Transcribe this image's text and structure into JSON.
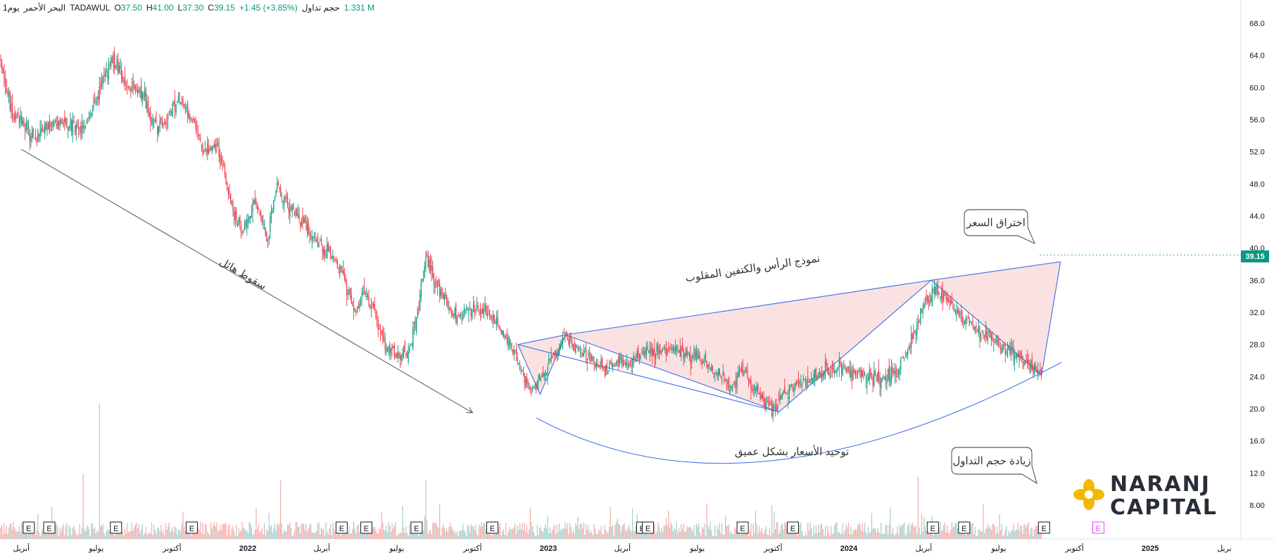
{
  "header": {
    "period": "1يوم",
    "name": "البحر الأحمر",
    "exchange": "TADAWUL",
    "open_label": "O",
    "open": "37.50",
    "high_label": "H",
    "high": "41.00",
    "low_label": "L",
    "low": "37.30",
    "close_label": "C",
    "close": "39.15",
    "change": "+1.45 (+3.85%)",
    "volume_label": "حجم تداول",
    "volume": "1.331 M"
  },
  "chart_data": {
    "type": "candlestick",
    "symbol": "TADAWUL",
    "y_axis": {
      "ticks": [
        68.0,
        64.0,
        60.0,
        56.0,
        52.0,
        48.0,
        44.0,
        40.0,
        36.0,
        32.0,
        28.0,
        24.0,
        20.0,
        16.0,
        12.0,
        8.0
      ],
      "tick_labels": [
        "68.0",
        "64.0",
        "60.0",
        "56.0",
        "52.0",
        "48.0",
        "44.0",
        "40.0",
        "36.0",
        "32.0",
        "28.0",
        "24.0",
        "20.0",
        "16.0",
        "12.0",
        "8.00"
      ],
      "ylim": [
        5.5,
        70
      ]
    },
    "x_axis": {
      "tick_labels": [
        "أبريل",
        "يوليو",
        "أكتوبر",
        "2022",
        "أبريل",
        "يوليو",
        "أكتوبر",
        "2023",
        "أبريل",
        "يوليو",
        "أكتوبر",
        "2024",
        "أبريل",
        "يوليو",
        "أكتوبر",
        "2025",
        "بريل"
      ],
      "tick_dates": [
        "2021-04-01",
        "2021-07-01",
        "2021-10-01",
        "2022-01-01",
        "2022-04-01",
        "2022-07-01",
        "2022-10-01",
        "2023-01-01",
        "2023-04-01",
        "2023-07-01",
        "2023-10-01",
        "2024-01-01",
        "2024-04-01",
        "2024-07-01",
        "2024-10-01",
        "2025-01-01",
        "2025-04-01"
      ],
      "bold_ticks": [
        "2022",
        "2023",
        "2024",
        "2025"
      ]
    },
    "price_path": [
      [
        "2021-03-01",
        66
      ],
      [
        "2021-03-20",
        57
      ],
      [
        "2021-04-15",
        54
      ],
      [
        "2021-05-20",
        56
      ],
      [
        "2021-06-15",
        54.5
      ],
      [
        "2021-07-10",
        61
      ],
      [
        "2021-07-20",
        63.5
      ],
      [
        "2021-08-10",
        60
      ],
      [
        "2021-08-25",
        59.5
      ],
      [
        "2021-09-10",
        55
      ],
      [
        "2021-09-25",
        56
      ],
      [
        "2021-10-10",
        59
      ],
      [
        "2021-10-25",
        56
      ],
      [
        "2021-11-10",
        52
      ],
      [
        "2021-11-25",
        53
      ],
      [
        "2021-12-10",
        46
      ],
      [
        "2021-12-25",
        42
      ],
      [
        "2022-01-10",
        46
      ],
      [
        "2022-01-25",
        41
      ],
      [
        "2022-02-05",
        48
      ],
      [
        "2022-02-20",
        45
      ],
      [
        "2022-03-05",
        44
      ],
      [
        "2022-03-25",
        41
      ],
      [
        "2022-04-10",
        39.5
      ],
      [
        "2022-04-25",
        37
      ],
      [
        "2022-05-10",
        32
      ],
      [
        "2022-05-20",
        34
      ],
      [
        "2022-06-01",
        33
      ],
      [
        "2022-06-15",
        28
      ],
      [
        "2022-07-01",
        26.5
      ],
      [
        "2022-07-15",
        27
      ],
      [
        "2022-07-25",
        31
      ],
      [
        "2022-08-05",
        39
      ],
      [
        "2022-08-15",
        36
      ],
      [
        "2022-08-25",
        34
      ],
      [
        "2022-09-10",
        31.5
      ],
      [
        "2022-09-25",
        32
      ],
      [
        "2022-10-10",
        32.5
      ],
      [
        "2022-10-25",
        31.5
      ],
      [
        "2022-11-10",
        29
      ],
      [
        "2022-11-25",
        26
      ],
      [
        "2022-12-10",
        21.8
      ],
      [
        "2022-12-25",
        24.5
      ],
      [
        "2023-01-10",
        27
      ],
      [
        "2023-01-20",
        29
      ],
      [
        "2023-02-10",
        27
      ],
      [
        "2023-03-10",
        25
      ],
      [
        "2023-04-10",
        26
      ],
      [
        "2023-05-10",
        27.5
      ],
      [
        "2023-06-10",
        27
      ],
      [
        "2023-07-10",
        26
      ],
      [
        "2023-08-10",
        22.5
      ],
      [
        "2023-08-25",
        25
      ],
      [
        "2023-09-10",
        22
      ],
      [
        "2023-10-01",
        20
      ],
      [
        "2023-10-20",
        22.5
      ],
      [
        "2023-11-10",
        23.5
      ],
      [
        "2023-12-10",
        25
      ],
      [
        "2024-01-10",
        24.5
      ],
      [
        "2024-02-10",
        23.5
      ],
      [
        "2024-03-01",
        25
      ],
      [
        "2024-03-15",
        28
      ],
      [
        "2024-04-01",
        33
      ],
      [
        "2024-04-15",
        35
      ],
      [
        "2024-05-01",
        33
      ],
      [
        "2024-05-20",
        31
      ],
      [
        "2024-06-10",
        29.5
      ],
      [
        "2024-07-01",
        28
      ],
      [
        "2024-07-20",
        27
      ],
      [
        "2024-08-05",
        26
      ],
      [
        "2024-08-20",
        24
      ],
      [
        "2024-08-30",
        27
      ],
      [
        "2024-09-10",
        36
      ],
      [
        "2024-09-14",
        39.15
      ]
    ],
    "volume_spikes": [
      [
        "2021-07-05",
        20.8
      ],
      [
        "2021-06-15",
        10
      ],
      [
        "2022-02-10",
        9
      ],
      [
        "2022-08-05",
        9
      ],
      [
        "2024-03-25",
        9.5
      ],
      [
        "2024-09-14",
        13.5
      ],
      [
        "2024-09-12",
        10
      ]
    ],
    "earnings_markers": [
      "2021-04-10",
      "2021-05-05",
      "2021-07-25",
      "2021-10-25",
      "2022-04-25",
      "2022-05-25",
      "2022-07-25",
      "2022-10-25",
      "2023-04-25",
      "2023-05-02",
      "2023-08-25",
      "2023-10-25",
      "2024-04-12",
      "2024-05-20",
      "2024-08-25",
      "2024-10-30"
    ],
    "last_price": "39.15",
    "annotations": {
      "sharp_drop": "سقوط هائل",
      "inverse_hs": "نموذج الرأس والكتفين المقلوب",
      "consolidation": "توحيد الأسعار بشكل عميق",
      "breakout": "اختراق السعر",
      "volume_increase": "زيادة حجم التداول"
    },
    "pattern_points": [
      [
        "2022-11-25",
        28
      ],
      [
        "2022-12-22",
        21.8
      ],
      [
        "2023-01-22",
        29.2
      ],
      [
        "2023-10-08",
        19.6
      ],
      [
        "2024-04-10",
        36
      ],
      [
        "2024-08-22",
        24.2
      ],
      [
        "2024-09-14",
        38.3
      ]
    ],
    "drop_line": [
      [
        "2021-04-01",
        52.3
      ],
      [
        "2022-10-01",
        19.5
      ]
    ],
    "colors": {
      "up": "#089981",
      "down": "#f23645",
      "trend": "#4a78e8",
      "fill": "#fbe2e2",
      "volume_up": "#9ed1cc",
      "volume_down": "#f7a9a7"
    }
  },
  "logo": {
    "line1": "NARANJ",
    "line2": "CAPITAL"
  },
  "earnings_label": "E"
}
